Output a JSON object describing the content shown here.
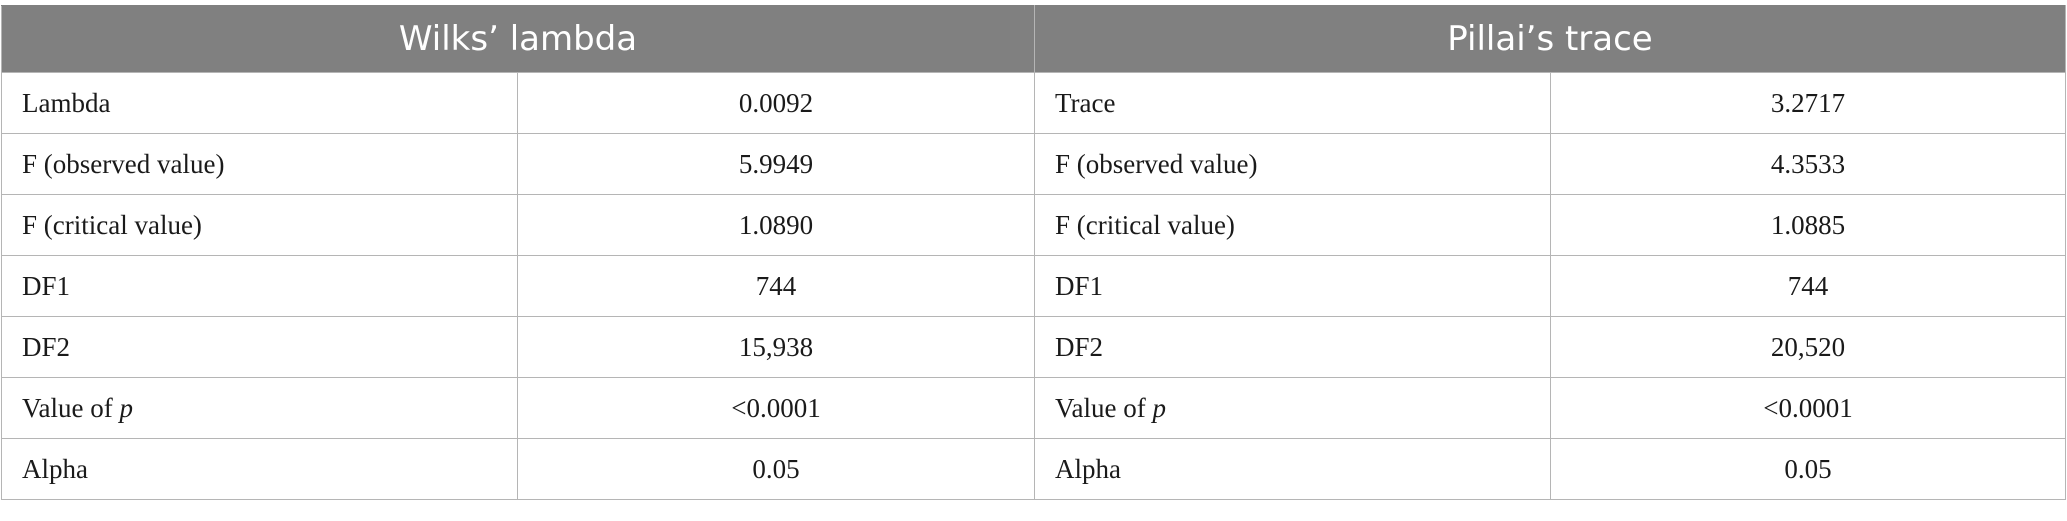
{
  "table": {
    "headers": [
      "Wilks’ lambda",
      "Pillai’s trace"
    ],
    "rows": [
      {
        "left_label": "Lambda",
        "left_value": "0.0092",
        "right_label": "Trace",
        "right_value": "3.2717"
      },
      {
        "left_label": "F (observed value)",
        "left_value": "5.9949",
        "right_label": "F (observed value)",
        "right_value": "4.3533"
      },
      {
        "left_label": "F (critical value)",
        "left_value": "1.0890",
        "right_label": "F (critical value)",
        "right_value": "1.0885"
      },
      {
        "left_label": "DF1",
        "left_value": "744",
        "right_label": "DF1",
        "right_value": "744"
      },
      {
        "left_label": "DF2",
        "left_value": "15,938",
        "right_label": "DF2",
        "right_value": "20,520"
      },
      {
        "left_label_prefix": "Value of ",
        "left_label_italic": "p",
        "left_value": "<0.0001",
        "right_label_prefix": "Value of ",
        "right_label_italic": "p",
        "right_value": "<0.0001"
      },
      {
        "left_label": "Alpha",
        "left_value": "0.05",
        "right_label": "Alpha",
        "right_value": "0.05"
      }
    ]
  }
}
